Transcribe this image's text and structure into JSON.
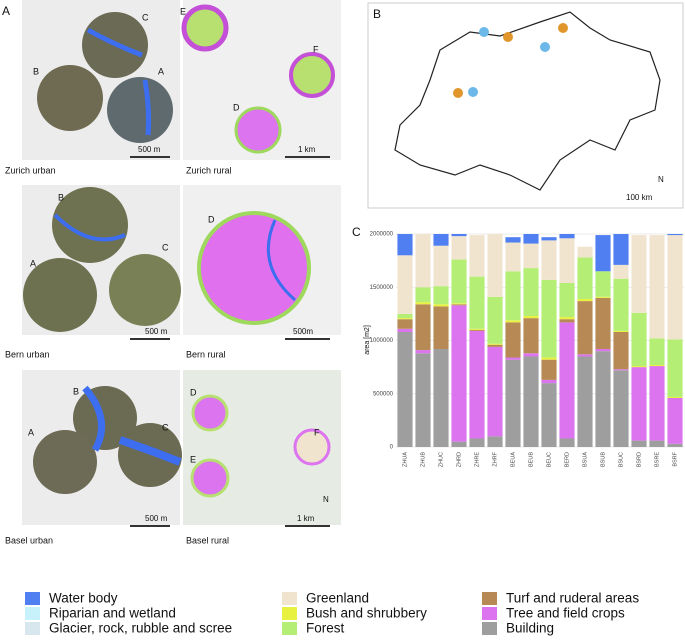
{
  "panels": {
    "labels": [
      "A",
      "B",
      "C"
    ],
    "zurich": {
      "urban": "Zurich urban",
      "rural": "Zurich rural",
      "sites": [
        "C",
        "B",
        "A",
        "E",
        "F",
        "D"
      ],
      "scale_urban": "500 m",
      "scale_rural": "1 km"
    },
    "bern": {
      "urban": "Bern urban",
      "rural": "Bern rural",
      "sites": [
        "B",
        "A",
        "C",
        "D"
      ],
      "scale_urban": "500 m",
      "scale_rural": "500m"
    },
    "basel": {
      "urban": "Basel urban",
      "rural": "Basel rural",
      "sites": [
        "B",
        "A",
        "C",
        "D",
        "E",
        "F"
      ],
      "scale_urban": "500 m",
      "scale_rural": "1 km",
      "north": "N"
    },
    "switzerland": {
      "scale": "100 km",
      "north": "N"
    }
  },
  "chart_data": {
    "type": "stacked_bar",
    "ylabel": "area [m2]",
    "categories": [
      "ZHUA",
      "ZHUB",
      "ZHUC",
      "ZHRD",
      "ZHRE",
      "ZHRF",
      "BEUA",
      "BEUB",
      "BEUC",
      "BERD",
      "BSUA",
      "BSUB",
      "BSUC",
      "BSRD",
      "BSRE",
      "BSRF"
    ],
    "ylim": [
      0,
      2000000
    ],
    "yticks": [
      0,
      500000,
      1000000,
      1500000,
      2000000
    ],
    "grid": true,
    "series": [
      {
        "name": "Building",
        "color": "#9e9e9e",
        "values": [
          1080000,
          880000,
          920000,
          50000,
          80000,
          100000,
          820000,
          850000,
          600000,
          80000,
          850000,
          900000,
          720000,
          60000,
          60000,
          30000
        ]
      },
      {
        "name": "Tree and field crops",
        "color": "#db74ee",
        "values": [
          30000,
          30000,
          0,
          1280000,
          1010000,
          840000,
          20000,
          30000,
          30000,
          1090000,
          20000,
          20000,
          10000,
          690000,
          700000,
          430000
        ]
      },
      {
        "name": "Turf and ruderal areas",
        "color": "#b78a55",
        "values": [
          90000,
          430000,
          400000,
          10000,
          10000,
          20000,
          330000,
          330000,
          190000,
          30000,
          500000,
          480000,
          350000,
          0,
          0,
          0
        ]
      },
      {
        "name": "Bush and shrubbery",
        "color": "#e8f040",
        "values": [
          10000,
          20000,
          20000,
          10000,
          10000,
          10000,
          20000,
          20000,
          20000,
          20000,
          20000,
          10000,
          10000,
          10000,
          10000,
          10000
        ]
      },
      {
        "name": "Forest",
        "color": "#b4ee74",
        "values": [
          40000,
          140000,
          170000,
          410000,
          490000,
          440000,
          460000,
          450000,
          730000,
          320000,
          390000,
          240000,
          490000,
          500000,
          250000,
          540000
        ]
      },
      {
        "name": "Greenland",
        "color": "#f1e4cf",
        "values": [
          550000,
          500000,
          380000,
          220000,
          390000,
          590000,
          270000,
          230000,
          370000,
          420000,
          100000,
          0,
          130000,
          730000,
          970000,
          980000
        ]
      },
      {
        "name": "Glacier, rock, rubble and scree",
        "color": "#d8e6ee",
        "values": [
          0,
          0,
          0,
          0,
          0,
          0,
          0,
          0,
          0,
          0,
          0,
          0,
          0,
          0,
          0,
          0
        ]
      },
      {
        "name": "Riparian and wetland",
        "color": "#c8f2fb",
        "values": [
          0,
          0,
          0,
          0,
          0,
          0,
          0,
          0,
          0,
          0,
          0,
          0,
          0,
          0,
          0,
          0
        ]
      },
      {
        "name": "Water body",
        "color": "#4f7ff0",
        "values": [
          200000,
          0,
          110000,
          20000,
          0,
          0,
          50000,
          90000,
          30000,
          40000,
          0,
          340000,
          290000,
          0,
          0,
          10000
        ]
      }
    ]
  }
}
